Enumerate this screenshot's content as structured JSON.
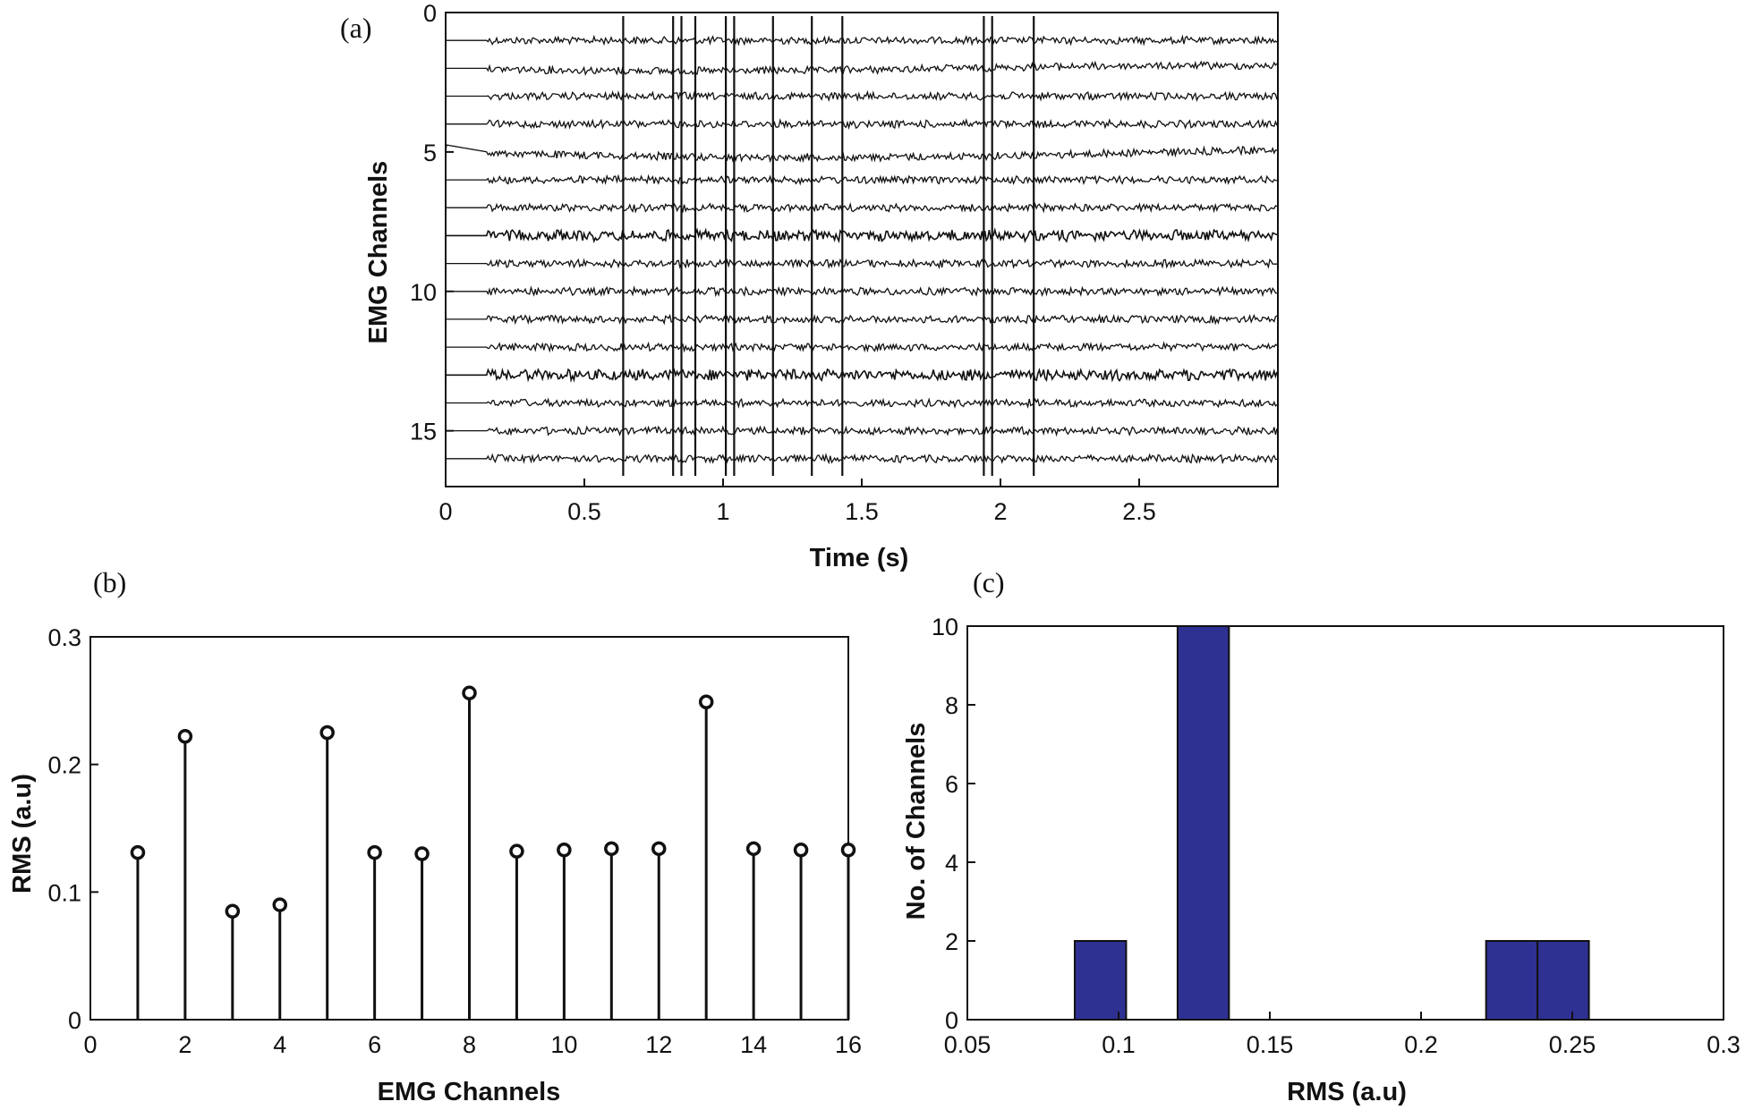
{
  "figure": {
    "background": "#ffffff",
    "ink": "#111111",
    "bar_color": "#2e3192"
  },
  "chart_data": [
    {
      "id": "a",
      "type": "line",
      "panel_label": "(a)",
      "xlabel": "Time (s)",
      "ylabel": "EMG Channels",
      "xlim": [
        0,
        3
      ],
      "ylim": [
        0,
        17
      ],
      "y_reversed": true,
      "xticks": [
        "0",
        "0.5",
        "1",
        "1.5",
        "2",
        "2.5"
      ],
      "xtick_values": [
        0,
        0.5,
        1,
        1.5,
        2,
        2.5
      ],
      "yticks": [
        "0",
        "5",
        "10",
        "15"
      ],
      "ytick_values": [
        0,
        5,
        10,
        15
      ],
      "channels": [
        1,
        2,
        3,
        4,
        5,
        6,
        7,
        8,
        9,
        10,
        11,
        12,
        13,
        14,
        15,
        16
      ],
      "signal_onset_s": 0.15,
      "spike_times_s": [
        0.64,
        0.82,
        0.85,
        0.9,
        1.01,
        1.04,
        1.18,
        1.32,
        1.43,
        1.94,
        1.97,
        2.12
      ]
    },
    {
      "id": "b",
      "type": "stem",
      "panel_label": "(b)",
      "xlabel": "EMG Channels",
      "ylabel": "RMS (a.u)",
      "xlim": [
        0,
        16
      ],
      "ylim": [
        0,
        0.3
      ],
      "xticks": [
        "0",
        "2",
        "4",
        "6",
        "8",
        "10",
        "12",
        "14",
        "16"
      ],
      "xtick_values": [
        0,
        2,
        4,
        6,
        8,
        10,
        12,
        14,
        16
      ],
      "yticks": [
        "0",
        "0.1",
        "0.2",
        "0.3"
      ],
      "ytick_values": [
        0,
        0.1,
        0.2,
        0.3
      ],
      "x": [
        1,
        2,
        3,
        4,
        5,
        6,
        7,
        8,
        9,
        10,
        11,
        12,
        13,
        14,
        15,
        16
      ],
      "values": [
        0.131,
        0.222,
        0.085,
        0.09,
        0.225,
        0.131,
        0.13,
        0.256,
        0.132,
        0.133,
        0.134,
        0.134,
        0.249,
        0.134,
        0.133,
        0.133
      ]
    },
    {
      "id": "c",
      "type": "bar",
      "panel_label": "(c)",
      "xlabel": "RMS (a.u)",
      "ylabel": "No. of Channels",
      "xlim": [
        0.05,
        0.3
      ],
      "ylim": [
        0,
        10
      ],
      "xticks": [
        "0.05",
        "0.1",
        "0.15",
        "0.2",
        "0.25",
        "0.3"
      ],
      "xtick_values": [
        0.05,
        0.1,
        0.15,
        0.2,
        0.25,
        0.3
      ],
      "yticks": [
        "0",
        "2",
        "4",
        "6",
        "8",
        "10"
      ],
      "ytick_values": [
        0,
        2,
        4,
        6,
        8,
        10
      ],
      "bins": [
        {
          "x0": 0.0855,
          "x1": 0.1025,
          "count": 2
        },
        {
          "x0": 0.1025,
          "x1": 0.1195,
          "count": 0
        },
        {
          "x0": 0.1195,
          "x1": 0.1365,
          "count": 10
        },
        {
          "x0": 0.1365,
          "x1": 0.1535,
          "count": 0
        },
        {
          "x0": 0.1535,
          "x1": 0.1705,
          "count": 0
        },
        {
          "x0": 0.1705,
          "x1": 0.1875,
          "count": 0
        },
        {
          "x0": 0.1875,
          "x1": 0.2045,
          "count": 0
        },
        {
          "x0": 0.2045,
          "x1": 0.2215,
          "count": 0
        },
        {
          "x0": 0.2215,
          "x1": 0.2385,
          "count": 2
        },
        {
          "x0": 0.2385,
          "x1": 0.2555,
          "count": 2
        }
      ]
    }
  ]
}
